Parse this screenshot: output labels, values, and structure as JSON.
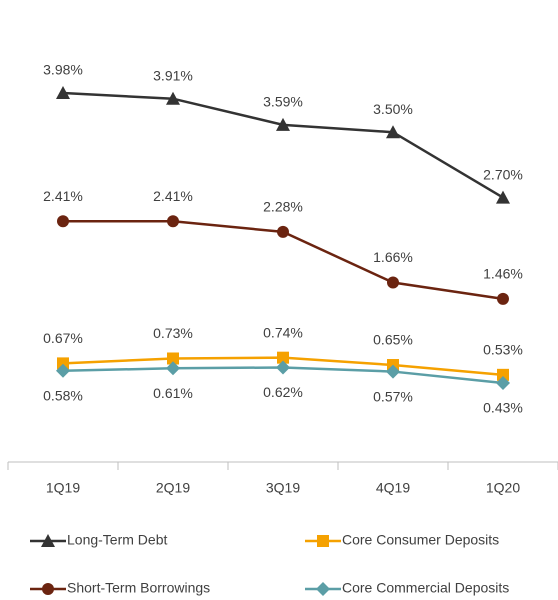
{
  "chart_data": {
    "type": "line",
    "categories": [
      "1Q19",
      "2Q19",
      "3Q19",
      "4Q19",
      "1Q20"
    ],
    "series": [
      {
        "name": "Long-Term Debt",
        "color": "#333333",
        "marker": "triangle",
        "values": [
          3.98,
          3.91,
          3.59,
          3.5,
          2.7
        ],
        "value_labels": [
          "3.98%",
          "3.91%",
          "3.59%",
          "3.50%",
          "2.70%"
        ]
      },
      {
        "name": "Short-Term Borrowings",
        "color": "#6b2410",
        "marker": "circle",
        "values": [
          2.41,
          2.41,
          2.28,
          1.66,
          1.46
        ],
        "value_labels": [
          "2.41%",
          "2.41%",
          "2.28%",
          "1.66%",
          "1.46%"
        ]
      },
      {
        "name": "Core Consumer Deposits",
        "color": "#f5a100",
        "marker": "square",
        "values": [
          0.67,
          0.73,
          0.74,
          0.65,
          0.53
        ],
        "value_labels": [
          "0.67%",
          "0.73%",
          "0.74%",
          "0.65%",
          "0.53%"
        ]
      },
      {
        "name": "Core Commercial Deposits",
        "color": "#5b9ea6",
        "marker": "diamond",
        "values": [
          0.58,
          0.61,
          0.62,
          0.57,
          0.43
        ],
        "value_labels": [
          "0.58%",
          "0.61%",
          "0.62%",
          "0.57%",
          "0.43%"
        ]
      }
    ]
  }
}
